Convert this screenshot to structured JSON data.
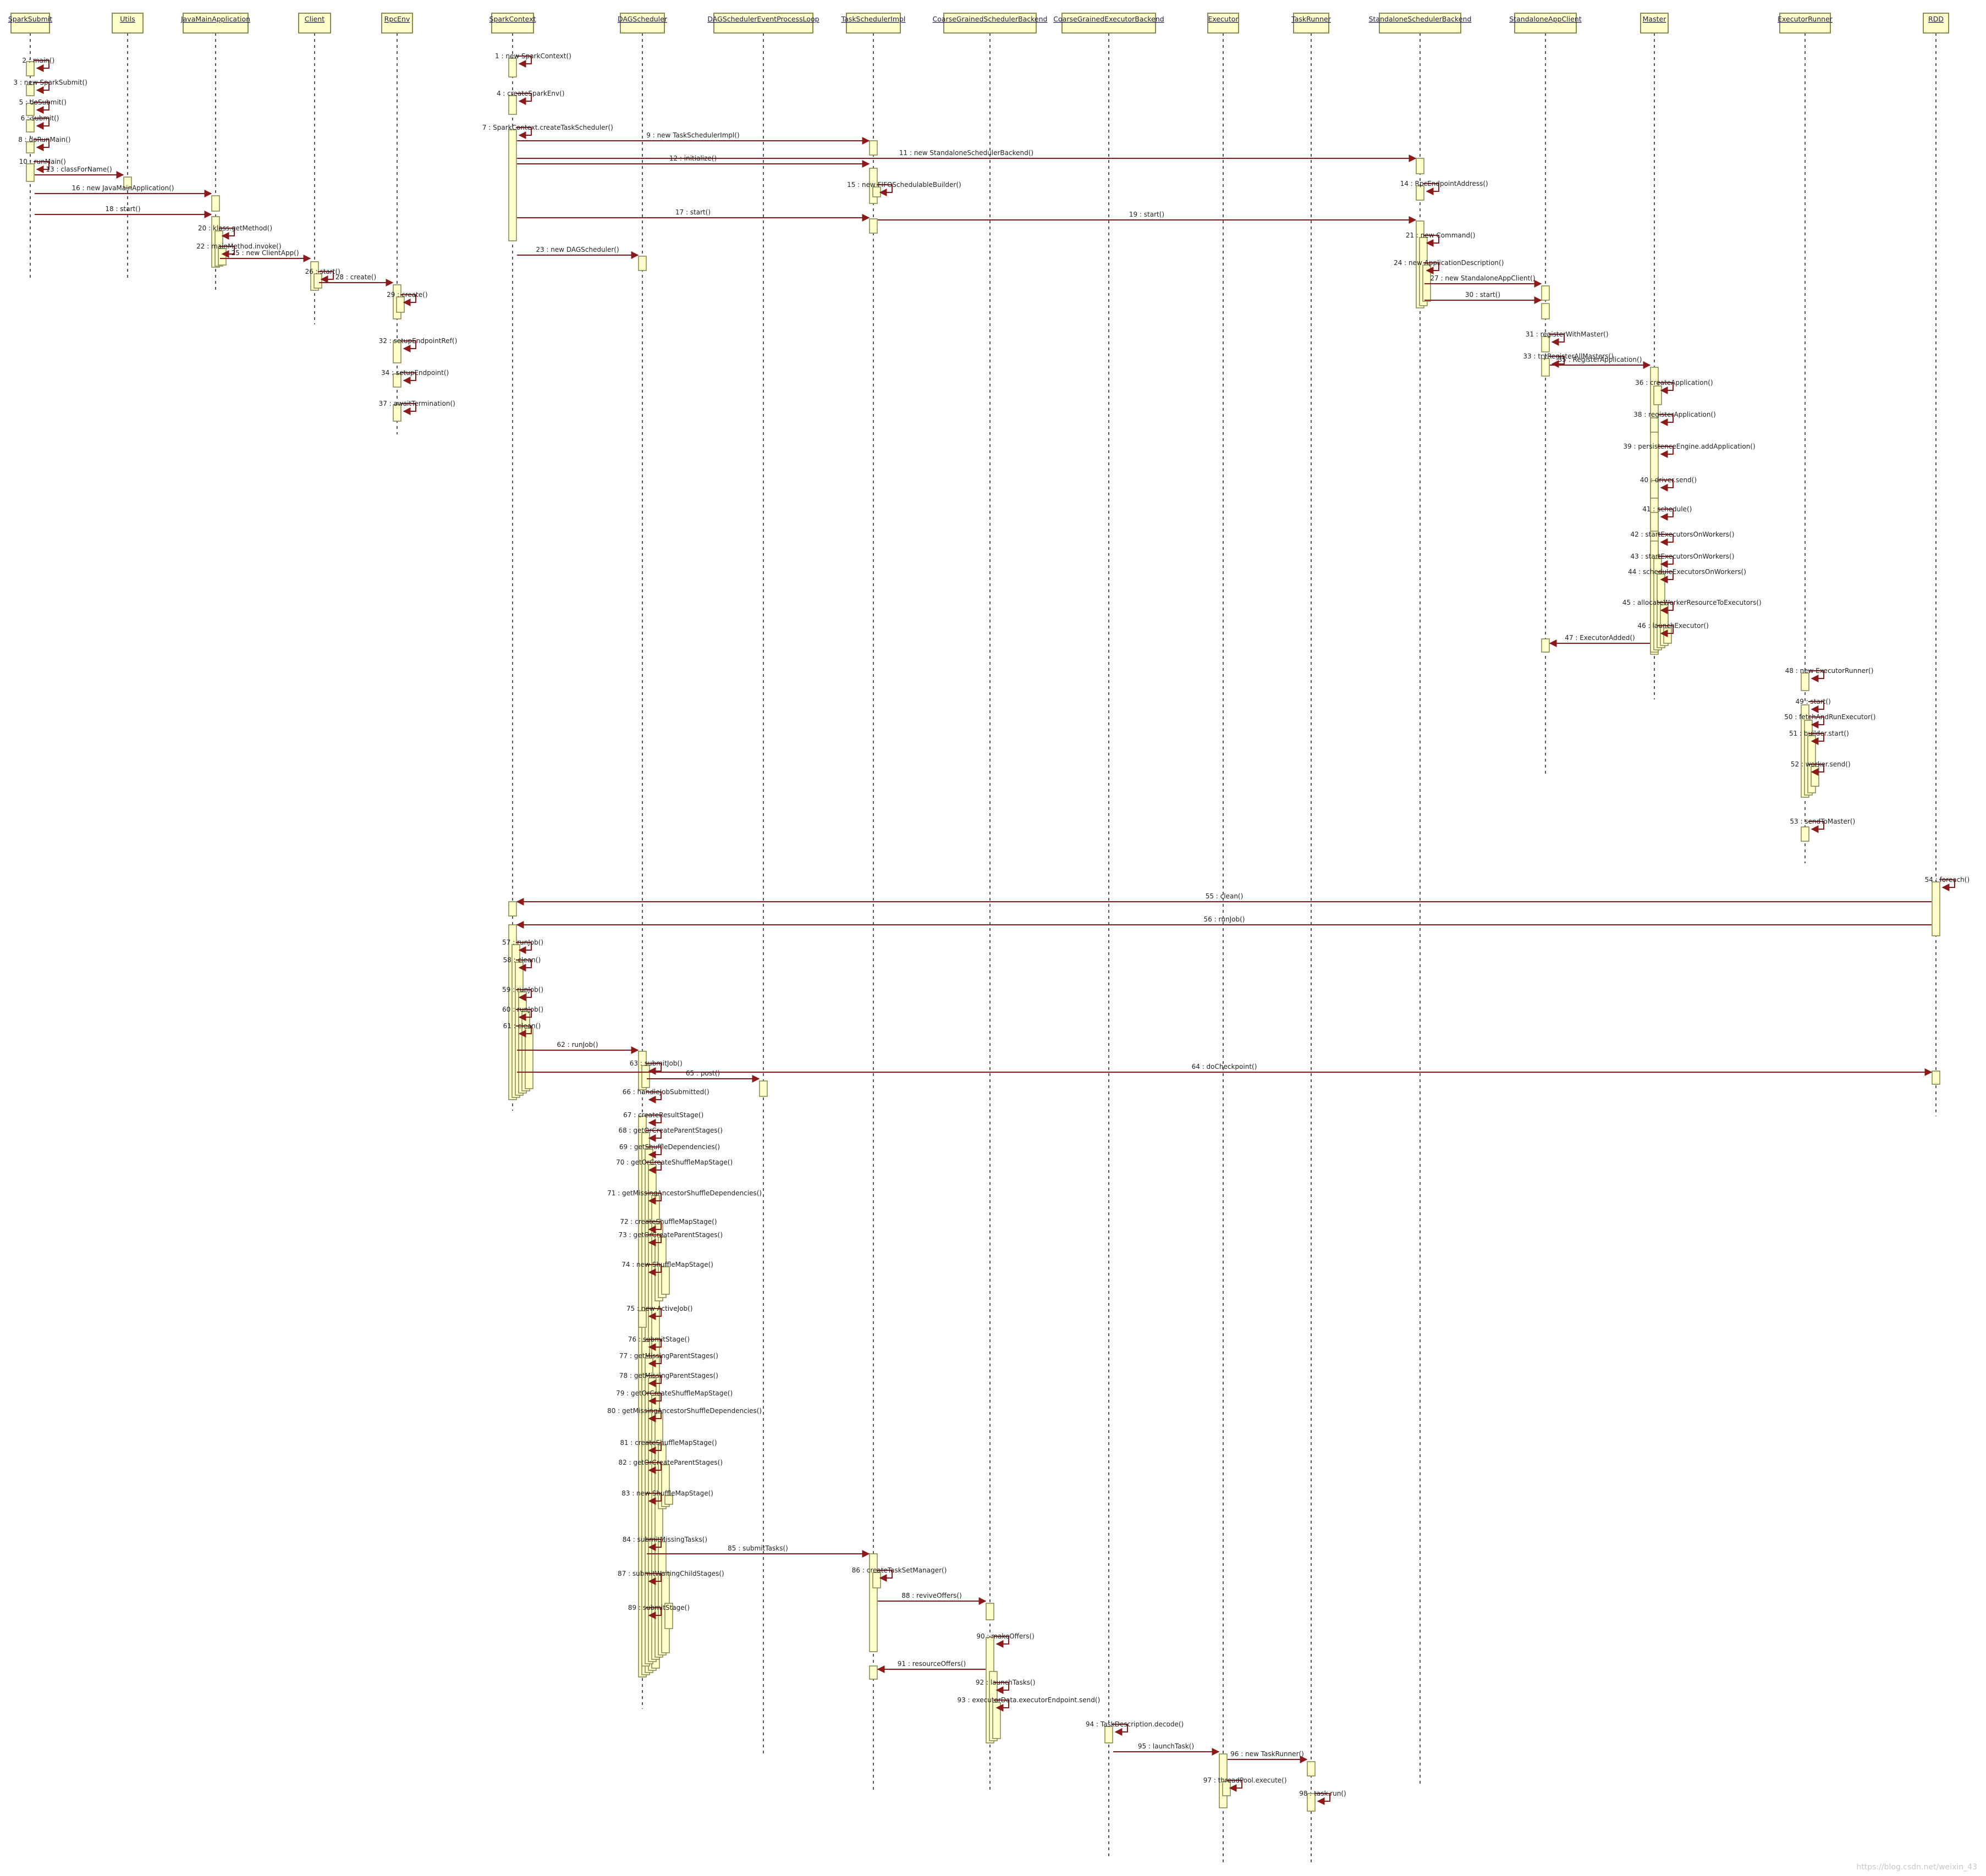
{
  "participants": [
    {
      "name": "SparkSubmit"
    },
    {
      "name": "Utils"
    },
    {
      "name": "JavaMainApplication"
    },
    {
      "name": "Client"
    },
    {
      "name": "RpcEnv"
    },
    {
      "name": "SparkContext"
    },
    {
      "name": "DAGScheduler"
    },
    {
      "name": "DAGSchedulerEventProcessLoop"
    },
    {
      "name": "TaskSchedulerImpl"
    },
    {
      "name": "CoarseGrainedSchedulerBackend"
    },
    {
      "name": "CoarseGrainedExecutorBackend"
    },
    {
      "name": "Executor"
    },
    {
      "name": "TaskRunner"
    },
    {
      "name": "StandaloneSchedulerBackend"
    },
    {
      "name": "StandaloneAppClient"
    },
    {
      "name": "Master"
    },
    {
      "name": "ExecutorRunner"
    },
    {
      "name": "RDD"
    }
  ],
  "messages": [
    {
      "label": "2 : main()",
      "from": 0,
      "to": 0
    },
    {
      "label": "3 : new SparkSubmit()",
      "from": 0,
      "to": 0
    },
    {
      "label": "5 : doSubmit()",
      "from": 0,
      "to": 0
    },
    {
      "label": "6 : submit()",
      "from": 0,
      "to": 0
    },
    {
      "label": "8 : doRunMain()",
      "from": 0,
      "to": 0
    },
    {
      "label": "10 : runMain()",
      "from": 0,
      "to": 0
    },
    {
      "label": "13 : classForName()",
      "from": 0,
      "to": 1
    },
    {
      "label": "16 : new JavaMainApplication()",
      "from": 0,
      "to": 2
    },
    {
      "label": "18 : start()",
      "from": 0,
      "to": 2
    },
    {
      "label": "20 : klass.getMethod()",
      "from": 2,
      "to": 2
    },
    {
      "label": "22 : mainMethod.invoke()",
      "from": 2,
      "to": 2
    },
    {
      "label": "25 : new ClientApp()",
      "from": 2,
      "to": 3
    },
    {
      "label": "26 : start()",
      "from": 3,
      "to": 3
    },
    {
      "label": "28 : create()",
      "from": 3,
      "to": 4
    },
    {
      "label": "29 : create()",
      "from": 4,
      "to": 4
    },
    {
      "label": "32 : setupEndpointRef()",
      "from": 4,
      "to": 4
    },
    {
      "label": "34 : setupEndpoint()",
      "from": 4,
      "to": 4
    },
    {
      "label": "37 : awaitTermination()",
      "from": 4,
      "to": 4
    },
    {
      "label": "1 : new SparkContext()",
      "from": 5,
      "to": 5
    },
    {
      "label": "4 : createSparkEnv()",
      "from": 5,
      "to": 5
    },
    {
      "label": "7 : SparkContext.createTaskScheduler()",
      "from": 5,
      "to": 5
    },
    {
      "label": "9 : new TaskSchedulerImpl()",
      "from": 5,
      "to": 8
    },
    {
      "label": "11 : new StandaloneSchedulerBackend()",
      "from": 5,
      "to": 13
    },
    {
      "label": "12 : initialize()",
      "from": 5,
      "to": 8
    },
    {
      "label": "15 : new FIFOSchedulableBuilder()",
      "from": 8,
      "to": 8
    },
    {
      "label": "14 : RpcEndpointAddress()",
      "from": 13,
      "to": 13
    },
    {
      "label": "17 : start()",
      "from": 5,
      "to": 8
    },
    {
      "label": "19 : start()",
      "from": 8,
      "to": 13
    },
    {
      "label": "21 : new Command()",
      "from": 13,
      "to": 13
    },
    {
      "label": "23 : new DAGScheduler()",
      "from": 5,
      "to": 6
    },
    {
      "label": "24 : new ApplicationDescription()",
      "from": 13,
      "to": 13
    },
    {
      "label": "27 : new StandaloneAppClient()",
      "from": 13,
      "to": 14
    },
    {
      "label": "30 : start()",
      "from": 13,
      "to": 14
    },
    {
      "label": "31 : registerWithMaster()",
      "from": 14,
      "to": 14
    },
    {
      "label": "33 : tryRegisterAllMasters()",
      "from": 14,
      "to": 14
    },
    {
      "label": "35 : RegisterApplication()",
      "from": 14,
      "to": 15
    },
    {
      "label": "36 : createApplication()",
      "from": 15,
      "to": 15
    },
    {
      "label": "38 : registerApplication()",
      "from": 15,
      "to": 15
    },
    {
      "label": "39 : persistenceEngine.addApplication()",
      "from": 15,
      "to": 15
    },
    {
      "label": "40 : driver.send()",
      "from": 15,
      "to": 15
    },
    {
      "label": "41 : schedule()",
      "from": 15,
      "to": 15
    },
    {
      "label": "42 : startExecutorsOnWorkers()",
      "from": 15,
      "to": 15
    },
    {
      "label": "43 : startExecutorsOnWorkers()",
      "from": 15,
      "to": 15
    },
    {
      "label": "44 : scheduleExecutorsOnWorkers()",
      "from": 15,
      "to": 15
    },
    {
      "label": "45 : allocateWorkerResourceToExecutors()",
      "from": 15,
      "to": 15
    },
    {
      "label": "46 : launchExecutor()",
      "from": 15,
      "to": 15
    },
    {
      "label": "47 : ExecutorAdded()",
      "from": 15,
      "to": 14
    },
    {
      "label": "48 : new ExecutorRunner()",
      "from": 16,
      "to": 16
    },
    {
      "label": "49 : start()",
      "from": 16,
      "to": 16
    },
    {
      "label": "50 : fetchAndRunExecutor()",
      "from": 16,
      "to": 16
    },
    {
      "label": "51 : builder.start()",
      "from": 16,
      "to": 16
    },
    {
      "label": "52 : worker.send()",
      "from": 16,
      "to": 16
    },
    {
      "label": "53 : sendToMaster()",
      "from": 16,
      "to": 16
    },
    {
      "label": "54 : foreach()",
      "from": 17,
      "to": 17
    },
    {
      "label": "55 : clean()",
      "from": 17,
      "to": 5
    },
    {
      "label": "56 : runJob()",
      "from": 17,
      "to": 5
    },
    {
      "label": "57 : runJob()",
      "from": 5,
      "to": 5
    },
    {
      "label": "58 : clean()",
      "from": 5,
      "to": 5
    },
    {
      "label": "59 : runJob()",
      "from": 5,
      "to": 5
    },
    {
      "label": "60 : runJob()",
      "from": 5,
      "to": 5
    },
    {
      "label": "61 : clean()",
      "from": 5,
      "to": 5
    },
    {
      "label": "62 : runJob()",
      "from": 5,
      "to": 6
    },
    {
      "label": "63 : submitJob()",
      "from": 6,
      "to": 6
    },
    {
      "label": "64 : doCheckpoint()",
      "from": 5,
      "to": 17
    },
    {
      "label": "65 : post()",
      "from": 6,
      "to": 7
    },
    {
      "label": "66 : handleJobSubmitted()",
      "from": 6,
      "to": 6
    },
    {
      "label": "67 : createResultStage()",
      "from": 6,
      "to": 6
    },
    {
      "label": "68 : getOrCreateParentStages()",
      "from": 6,
      "to": 6
    },
    {
      "label": "69 : getShuffleDependencies()",
      "from": 6,
      "to": 6
    },
    {
      "label": "70 : getOrCreateShuffleMapStage()",
      "from": 6,
      "to": 6
    },
    {
      "label": "71 : getMissingAncestorShuffleDependencies()",
      "from": 6,
      "to": 6
    },
    {
      "label": "72 : createShuffleMapStage()",
      "from": 6,
      "to": 6
    },
    {
      "label": "73 : getOrCreateParentStages()",
      "from": 6,
      "to": 6
    },
    {
      "label": "74 : new ShuffleMapStage()",
      "from": 6,
      "to": 6
    },
    {
      "label": "75 : new ActiveJob()",
      "from": 6,
      "to": 6
    },
    {
      "label": "76 : submitStage()",
      "from": 6,
      "to": 6
    },
    {
      "label": "77 : getMissingParentStages()",
      "from": 6,
      "to": 6
    },
    {
      "label": "78 : getMissingParentStages()",
      "from": 6,
      "to": 6
    },
    {
      "label": "79 : getOrCreateShuffleMapStage()",
      "from": 6,
      "to": 6
    },
    {
      "label": "80 : getMissingAncestorShuffleDependencies()",
      "from": 6,
      "to": 6
    },
    {
      "label": "81 : createShuffleMapStage()",
      "from": 6,
      "to": 6
    },
    {
      "label": "82 : getOrCreateParentStages()",
      "from": 6,
      "to": 6
    },
    {
      "label": "83 : new ShuffleMapStage()",
      "from": 6,
      "to": 6
    },
    {
      "label": "84 : submitMissingTasks()",
      "from": 6,
      "to": 6
    },
    {
      "label": "85 : submitTasks()",
      "from": 6,
      "to": 8
    },
    {
      "label": "86 : createTaskSetManager()",
      "from": 8,
      "to": 8
    },
    {
      "label": "87 : submitWaitingChildStages()",
      "from": 6,
      "to": 6
    },
    {
      "label": "88 : reviveOffers()",
      "from": 8,
      "to": 9
    },
    {
      "label": "89 : submitStage()",
      "from": 6,
      "to": 6
    },
    {
      "label": "90 : makeOffers()",
      "from": 9,
      "to": 9
    },
    {
      "label": "91 : resourceOffers()",
      "from": 9,
      "to": 8
    },
    {
      "label": "92 : launchTasks()",
      "from": 9,
      "to": 9
    },
    {
      "label": "93 : executorData.executorEndpoint.send()",
      "from": 9,
      "to": 9
    },
    {
      "label": "94 : TaskDescription.decode()",
      "from": 10,
      "to": 10
    },
    {
      "label": "95 : launchTask()",
      "from": 10,
      "to": 11
    },
    {
      "label": "96 : new TaskRunner()",
      "from": 11,
      "to": 12
    },
    {
      "label": "97 : threadPool.execute()",
      "from": 11,
      "to": 11
    },
    {
      "label": "98 : task.run()",
      "from": 12,
      "to": 12
    }
  ],
  "watermark": "https://blog.csdn.net/weixin_43"
}
